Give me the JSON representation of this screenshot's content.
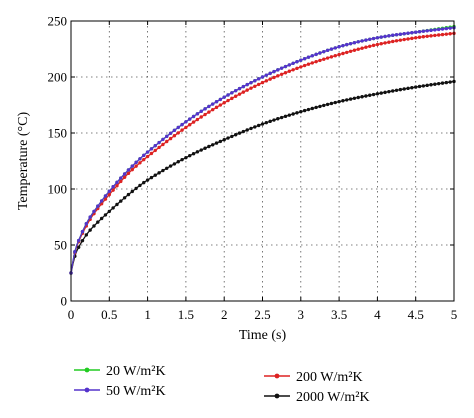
{
  "chart_data": {
    "type": "line",
    "xlabel": "Time (s)",
    "ylabel": "Temperature (°C)",
    "xlim": [
      0,
      5
    ],
    "ylim": [
      0,
      250
    ],
    "xticks": [
      0,
      0.5,
      1,
      1.5,
      2,
      2.5,
      3,
      3.5,
      4,
      4.5,
      5
    ],
    "xtick_labels": [
      "0",
      "0.5",
      "1",
      "1.5",
      "2",
      "2.5",
      "3",
      "3.5",
      "4",
      "4.5",
      "5"
    ],
    "yticks": [
      0,
      50,
      100,
      150,
      200,
      250
    ],
    "ytick_labels": [
      "0",
      "50",
      "100",
      "150",
      "200",
      "250"
    ],
    "grid": true,
    "legend_position": "bottom",
    "marker": "dot",
    "series": [
      {
        "name": "20 W/m²K",
        "color": "#22cc22",
        "x": [
          0,
          0.05,
          0.1,
          0.2,
          0.3,
          0.5,
          0.75,
          1,
          1.5,
          2,
          2.5,
          3,
          3.5,
          4,
          4.5,
          5
        ],
        "y": [
          25,
          44,
          54,
          69,
          80,
          98,
          117,
          133,
          160,
          182,
          200,
          215,
          227,
          235,
          240,
          245
        ]
      },
      {
        "name": "50 W/m²K",
        "color": "#5533cc",
        "x": [
          0,
          0.05,
          0.1,
          0.2,
          0.3,
          0.5,
          0.75,
          1,
          1.5,
          2,
          2.5,
          3,
          3.5,
          4,
          4.5,
          5
        ],
        "y": [
          25,
          44,
          54,
          69,
          80,
          98,
          117,
          133,
          160,
          182,
          200,
          215,
          227,
          235,
          240,
          244
        ]
      },
      {
        "name": "200 W/m²K",
        "color": "#dd2222",
        "x": [
          0,
          0.05,
          0.1,
          0.2,
          0.3,
          0.5,
          0.75,
          1,
          1.5,
          2,
          2.5,
          3,
          3.5,
          4,
          4.5,
          5
        ],
        "y": [
          25,
          43,
          53,
          67,
          78,
          95,
          114,
          129,
          155,
          177,
          195,
          209,
          220,
          229,
          235,
          239
        ]
      },
      {
        "name": "2000 W/m²K",
        "color": "#111111",
        "x": [
          0,
          0.05,
          0.1,
          0.2,
          0.3,
          0.5,
          0.75,
          1,
          1.5,
          2,
          2.5,
          3,
          3.5,
          4,
          4.5,
          5
        ],
        "y": [
          25,
          40,
          48,
          59,
          67,
          80,
          95,
          108,
          128,
          144,
          158,
          169,
          178,
          185,
          191,
          196
        ]
      }
    ]
  }
}
